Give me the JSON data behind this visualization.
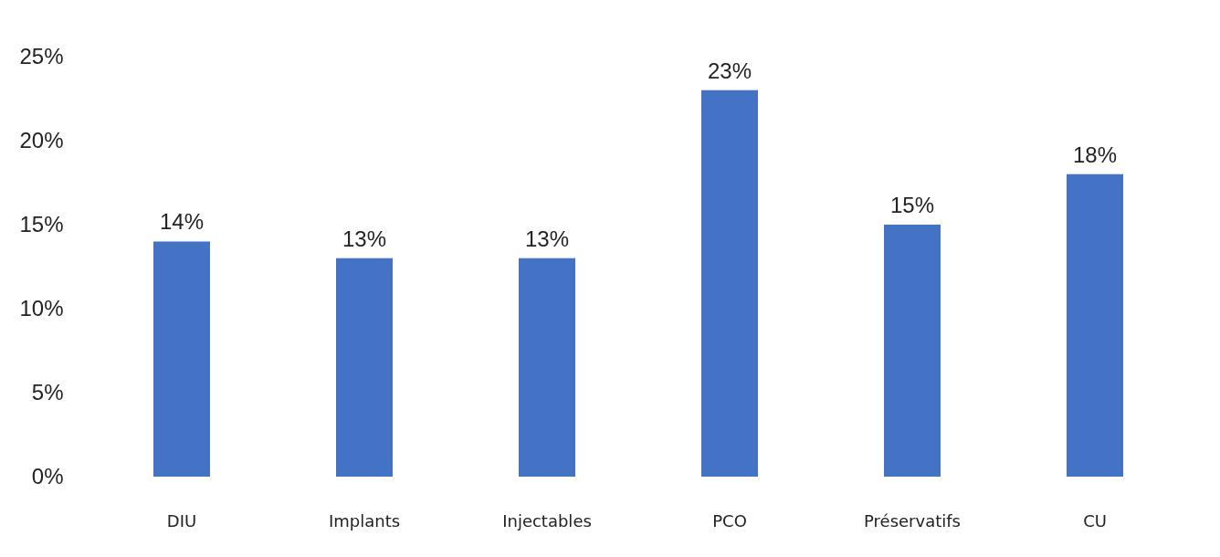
{
  "chart_data": {
    "type": "bar",
    "categories": [
      "DIU",
      "Implants",
      "Injectables",
      "PCO",
      "Préservatifs",
      "CU"
    ],
    "values": [
      14,
      13,
      13,
      23,
      15,
      18
    ],
    "value_labels": [
      "14%",
      "13%",
      "13%",
      "23%",
      "15%",
      "18%"
    ],
    "color": "#4472c4",
    "ylim": [
      0,
      25
    ],
    "yticks": [
      {
        "value": 0,
        "label": "0%"
      },
      {
        "value": 5,
        "label": "5%"
      },
      {
        "value": 10,
        "label": "10%"
      },
      {
        "value": 15,
        "label": "15%"
      },
      {
        "value": 20,
        "label": "20%"
      },
      {
        "value": 25,
        "label": "25%"
      }
    ],
    "grid": false
  }
}
